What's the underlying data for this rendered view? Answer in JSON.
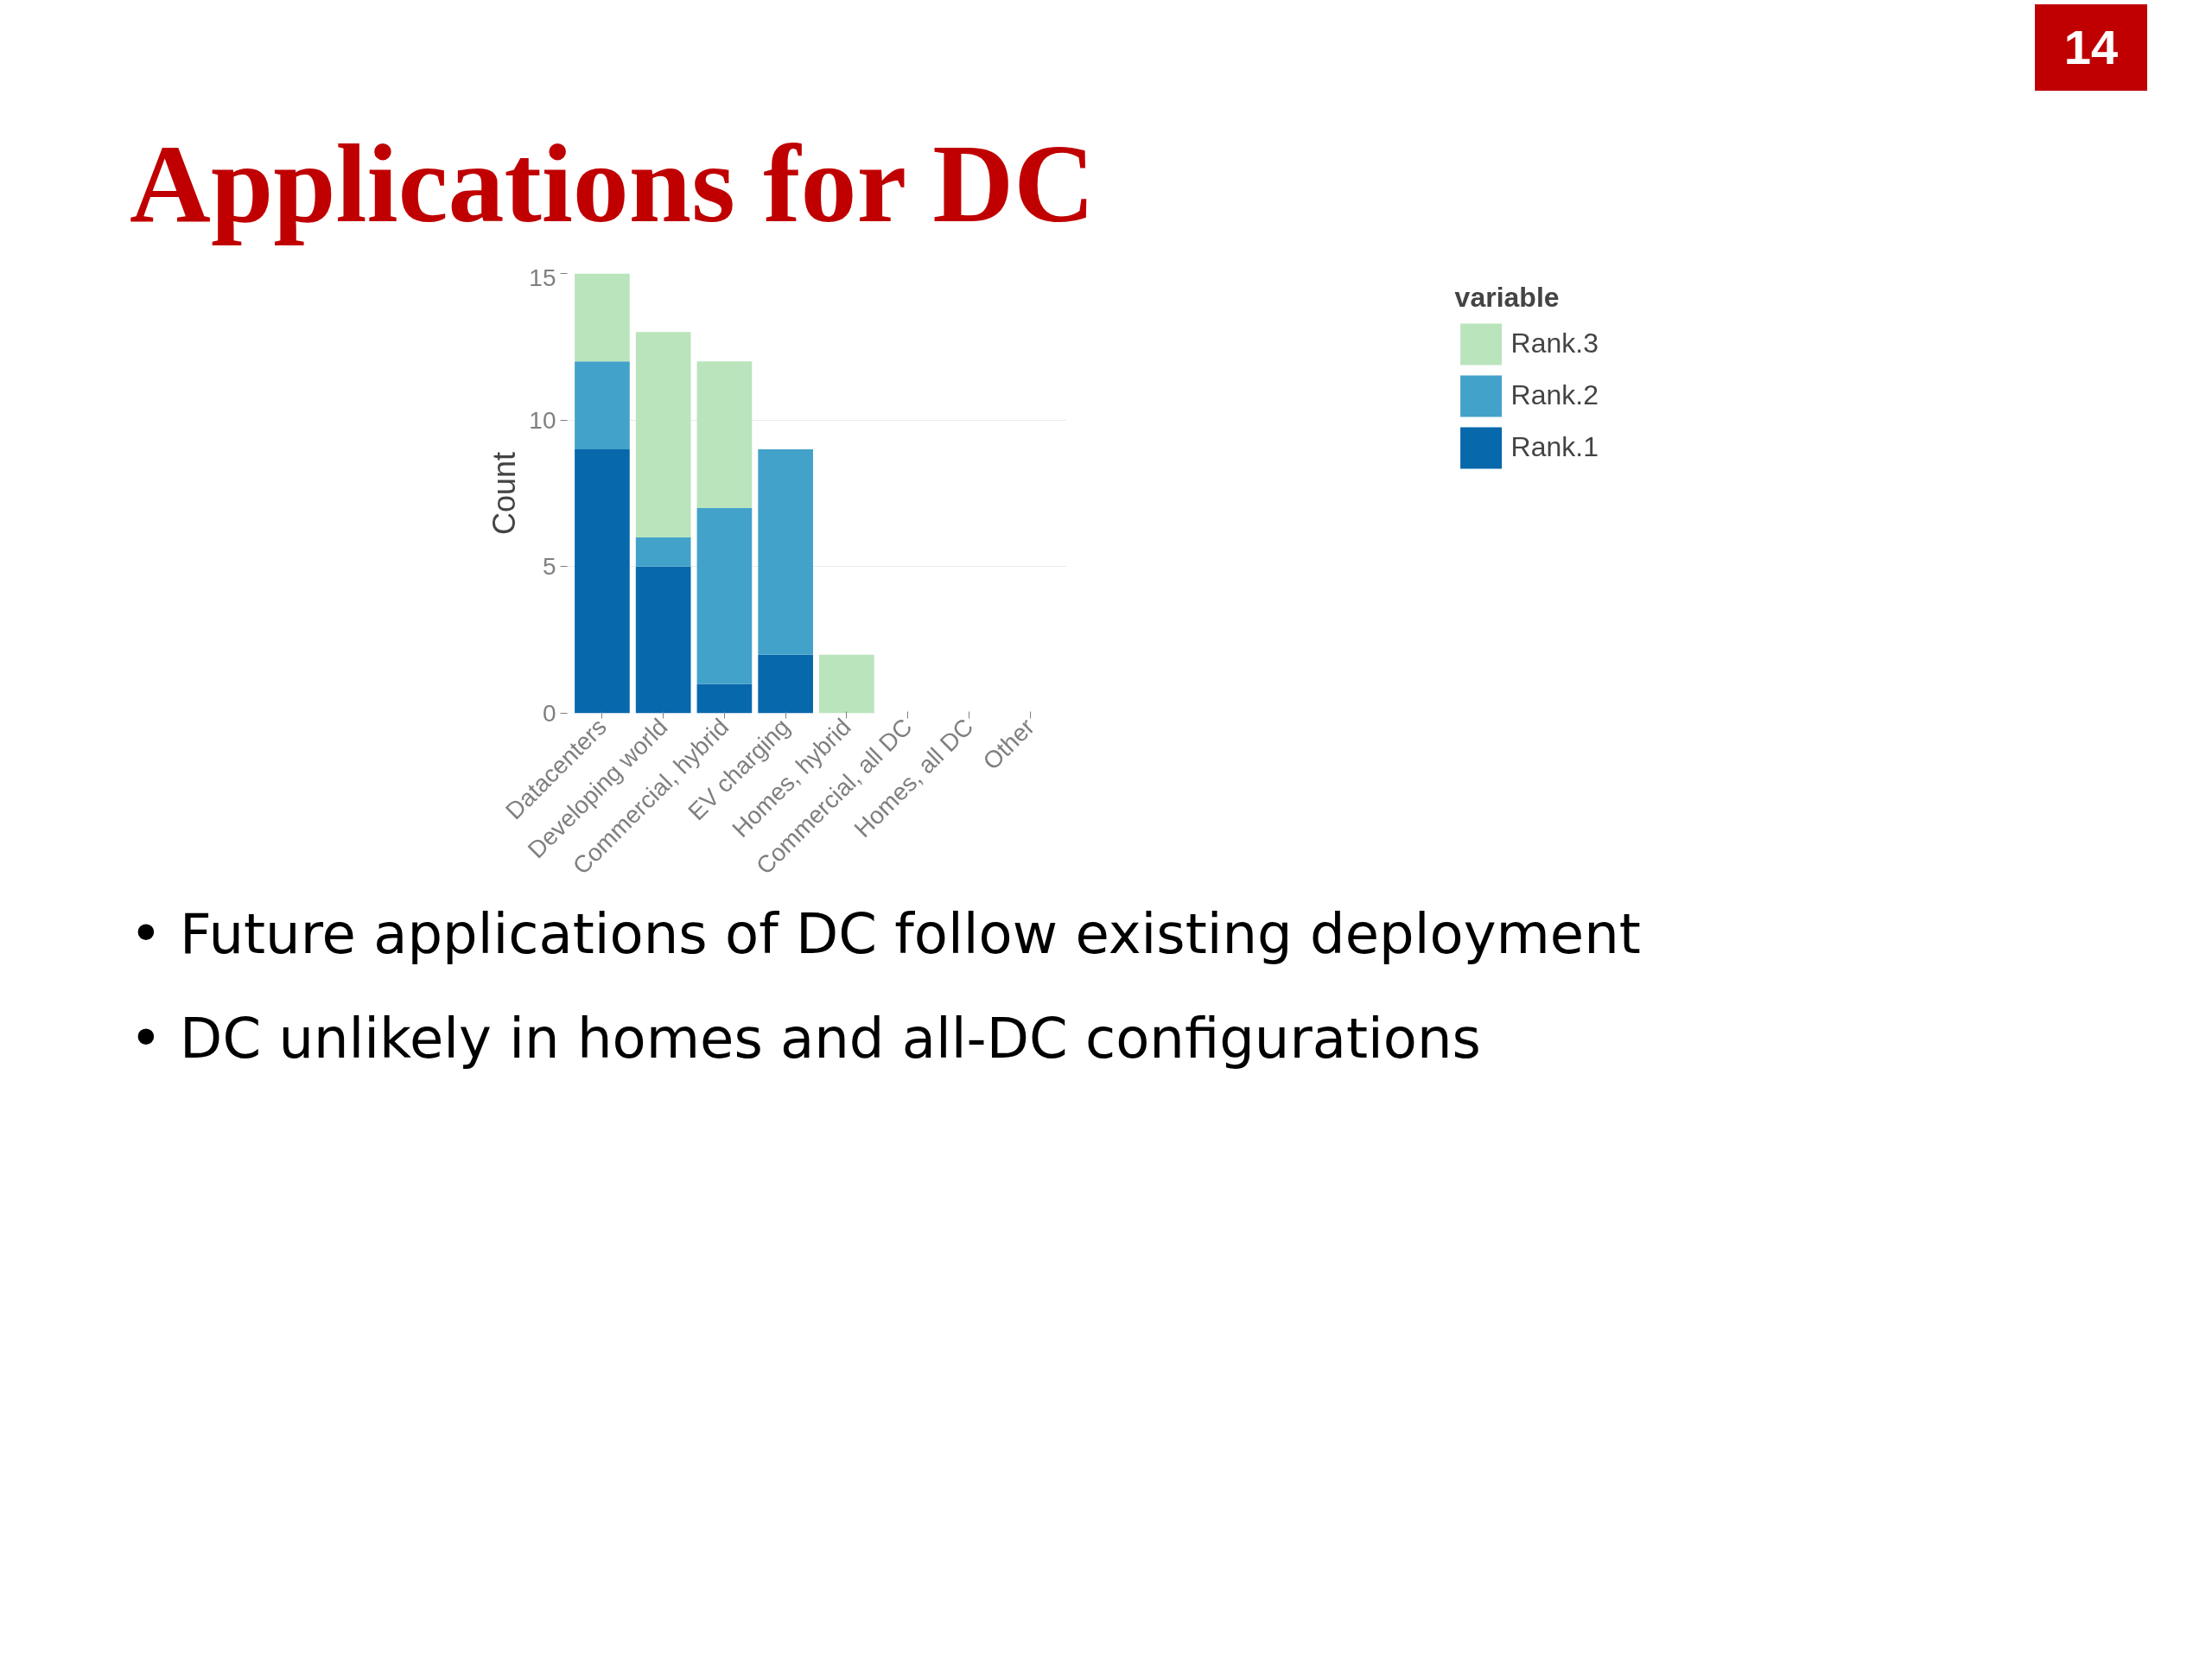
{
  "chart_data": {
    "type": "bar",
    "title": "Applications for DC",
    "ylabel": "Count",
    "legend_title": "variable",
    "categories": [
      "Datacenters",
      "Developing world",
      "Commercial, hybrid",
      "EV charging",
      "Homes, hybrid",
      "Commercial, all DC",
      "Homes, all DC",
      "Other"
    ],
    "series": [
      {
        "name": "Rank.1",
        "color": "#0868ac",
        "values": [
          9,
          5,
          1,
          2,
          0,
          0,
          0,
          0
        ]
      },
      {
        "name": "Rank.2",
        "color": "#43a2ca",
        "values": [
          3,
          1,
          6,
          7,
          0,
          0,
          0,
          0
        ]
      },
      {
        "name": "Rank.3",
        "color": "#bae4bc",
        "values": [
          3,
          7,
          5,
          0,
          2,
          0,
          0,
          0
        ]
      }
    ],
    "stacked": true,
    "ylim": [
      0,
      15
    ],
    "yticks": [
      0,
      5,
      10,
      15
    ],
    "grid": "y",
    "legend": "right",
    "annotations": [
      "14",
      "• Future applications of DC follow existing deployment",
      "• DC unlikely in homes and all-DC configurations"
    ]
  }
}
